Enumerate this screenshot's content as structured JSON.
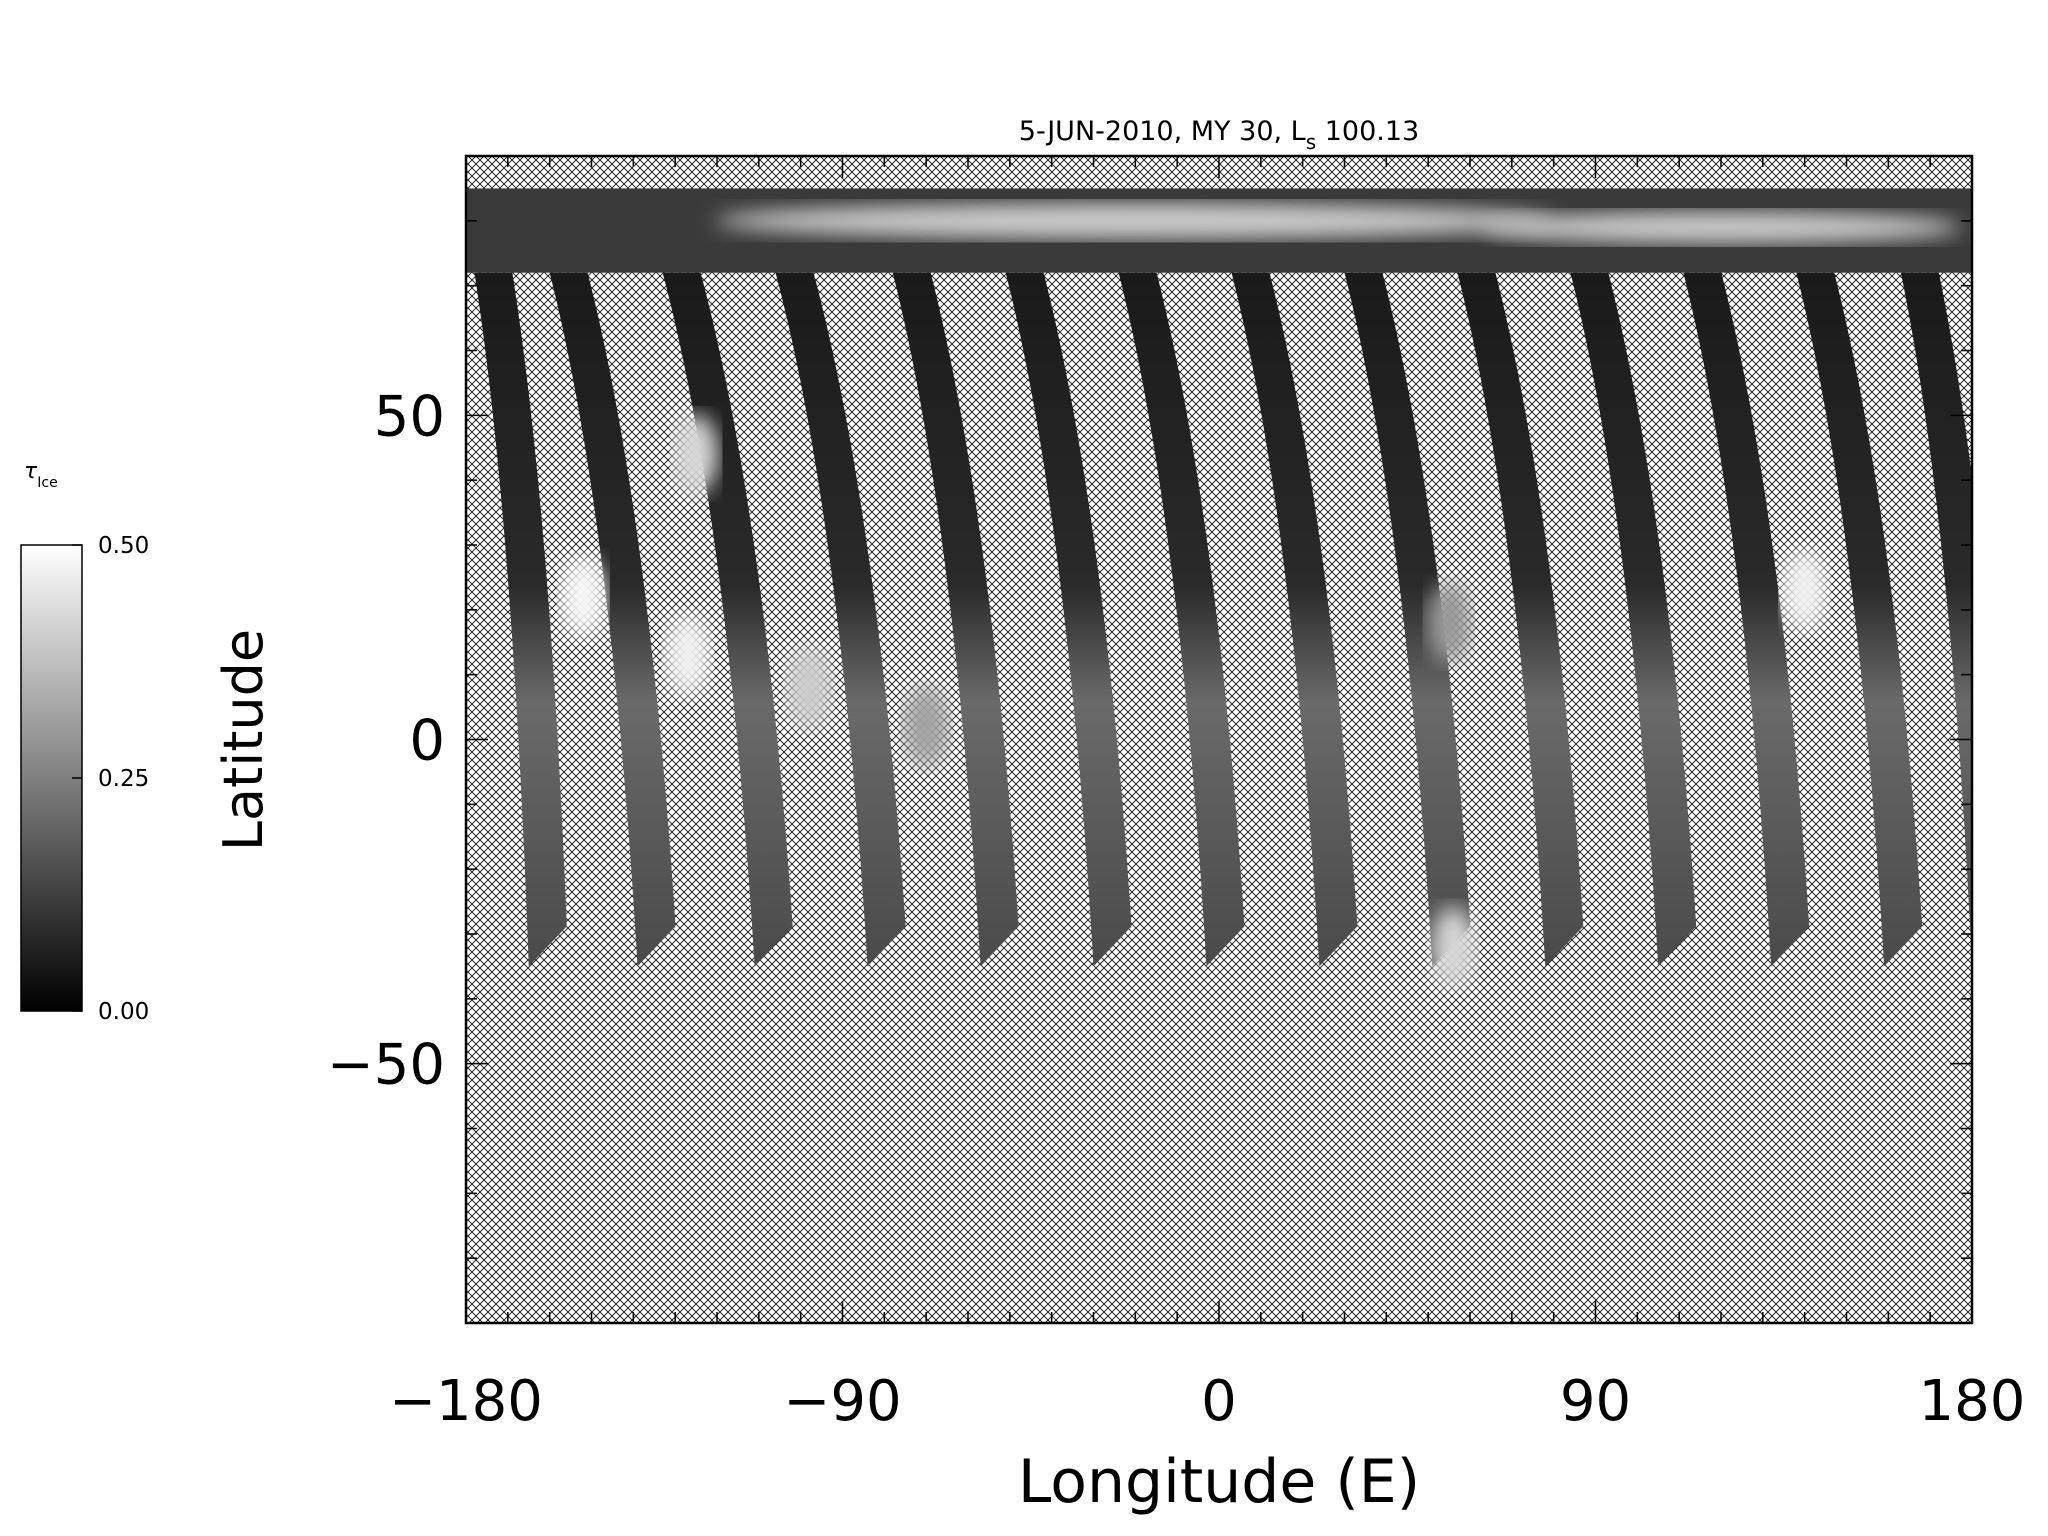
{
  "chart_data": {
    "type": "heatmap",
    "title_parts": {
      "prefix": "5-JUN-2010, MY 30,  L",
      "subscript": "s",
      "suffix": " 100.13"
    },
    "xlabel": "Longitude (E)",
    "ylabel": "Latitude",
    "xlim": [
      -180,
      180
    ],
    "ylim": [
      -90,
      90
    ],
    "x_ticks": [
      {
        "value": -180,
        "label": "−180"
      },
      {
        "value": -90,
        "label": "−90"
      },
      {
        "value": 0,
        "label": "0"
      },
      {
        "value": 90,
        "label": "90"
      },
      {
        "value": 180,
        "label": "180"
      }
    ],
    "y_ticks": [
      {
        "value": 50,
        "label": "50"
      },
      {
        "value": 0,
        "label": "0"
      },
      {
        "value": -50,
        "label": "−50"
      }
    ],
    "x_minor_step": 10,
    "y_minor_step": 10,
    "colorbar": {
      "symbol": "τ",
      "symbol_subscript": "Ice",
      "min": 0.0,
      "max": 0.5,
      "ticks": [
        {
          "value": 0.0,
          "label": "0.00"
        },
        {
          "value": 0.25,
          "label": "0.25"
        },
        {
          "value": 0.5,
          "label": "0.50"
        }
      ],
      "colormap": "grayscale"
    },
    "no_data_pattern": "crosshatch",
    "polar_cap_cloud": {
      "lat_min": 72,
      "lat_max": 85,
      "value": 0.4
    },
    "swaths": [
      {
        "lon_top": -178,
        "lon_bottom": -165,
        "lat_bottom": -35
      },
      {
        "lon_top": -160,
        "lon_bottom": -139,
        "lat_bottom": -35
      },
      {
        "lon_top": -133,
        "lon_bottom": -111,
        "lat_bottom": -35
      },
      {
        "lon_top": -106,
        "lon_bottom": -84,
        "lat_bottom": -35
      },
      {
        "lon_top": -78,
        "lon_bottom": -57,
        "lat_bottom": -35
      },
      {
        "lon_top": -51,
        "lon_bottom": -30,
        "lat_bottom": -35
      },
      {
        "lon_top": -24,
        "lon_bottom": -3,
        "lat_bottom": -35
      },
      {
        "lon_top": 3,
        "lon_bottom": 24,
        "lat_bottom": -35
      },
      {
        "lon_top": 30,
        "lon_bottom": 51,
        "lat_bottom": -35
      },
      {
        "lon_top": 57,
        "lon_bottom": 78,
        "lat_bottom": -35
      },
      {
        "lon_top": 84,
        "lon_bottom": 105,
        "lat_bottom": -35
      },
      {
        "lon_top": 111,
        "lon_bottom": 132,
        "lat_bottom": -35
      },
      {
        "lon_top": 138,
        "lon_bottom": 159,
        "lat_bottom": -35
      },
      {
        "lon_top": 163,
        "lon_bottom": 180,
        "lat_bottom": -35
      }
    ],
    "bright_clouds": [
      {
        "lon": -152,
        "lat": 22,
        "value": 0.48
      },
      {
        "lon": -127,
        "lat": 13,
        "value": 0.47
      },
      {
        "lon": -125,
        "lat": 44,
        "value": 0.42
      },
      {
        "lon": -98,
        "lat": 8,
        "value": 0.4
      },
      {
        "lon": -70,
        "lat": 2,
        "value": 0.32
      },
      {
        "lon": 55,
        "lat": 18,
        "value": 0.3
      },
      {
        "lon": 56,
        "lat": -32,
        "value": 0.42
      },
      {
        "lon": 140,
        "lat": 23,
        "value": 0.47
      }
    ]
  }
}
